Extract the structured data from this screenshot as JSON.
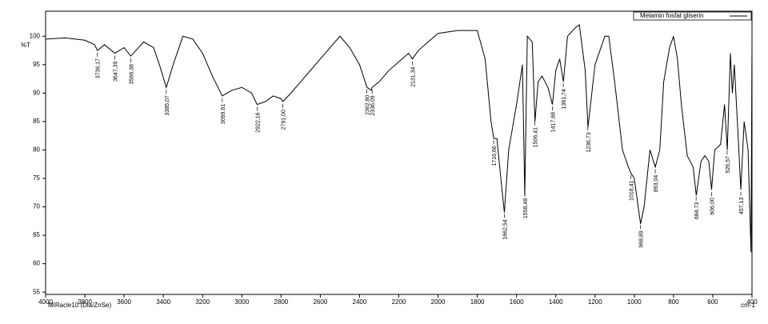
{
  "chart_data": {
    "type": "line",
    "legend_label": "Melamin fosfat gliserin",
    "ylabel": "%T",
    "xlabel": "cm-1",
    "footer": "MIRacle10 (Dia/ZnSe)",
    "xlim": [
      4000,
      400
    ],
    "ylim": [
      54.6,
      104.4
    ],
    "xticks": [
      4000,
      3800,
      3600,
      3400,
      3200,
      3000,
      2800,
      2600,
      2400,
      2200,
      2000,
      1800,
      1600,
      1400,
      1200,
      1000,
      800,
      600,
      400
    ],
    "yticks": [
      55,
      60,
      65,
      70,
      75,
      80,
      85,
      90,
      95,
      100
    ],
    "color": "#000000",
    "x": [
      4000,
      3900,
      3800,
      3750,
      3736,
      3700,
      3647,
      3600,
      3566,
      3500,
      3450,
      3420,
      3385,
      3350,
      3300,
      3250,
      3200,
      3150,
      3100,
      3050,
      3000,
      2950,
      2922,
      2880,
      2840,
      2800,
      2791,
      2750,
      2700,
      2600,
      2500,
      2450,
      2400,
      2362,
      2340,
      2336,
      2300,
      2250,
      2200,
      2150,
      2131,
      2100,
      2050,
      2000,
      1900,
      1800,
      1760,
      1730,
      1716,
      1700,
      1680,
      1662,
      1640,
      1600,
      1570,
      1558,
      1545,
      1520,
      1506,
      1490,
      1470,
      1440,
      1417,
      1400,
      1380,
      1361,
      1340,
      1300,
      1280,
      1250,
      1236,
      1200,
      1150,
      1130,
      1100,
      1060,
      1030,
      1018,
      1000,
      980,
      968,
      950,
      920,
      893,
      870,
      850,
      820,
      800,
      780,
      760,
      730,
      700,
      684,
      660,
      640,
      620,
      606,
      590,
      560,
      540,
      526,
      510,
      500,
      490,
      470,
      457,
      440,
      420,
      405,
      400
    ],
    "values": [
      99.5,
      99.7,
      99.3,
      98.5,
      97.5,
      98.5,
      97,
      98,
      96.5,
      99,
      98,
      95,
      91,
      95,
      100,
      99.5,
      97,
      93,
      89.5,
      90.5,
      91,
      90,
      88,
      88.5,
      89.5,
      89,
      88.5,
      90,
      92,
      96,
      100,
      98,
      95,
      91,
      90.5,
      91,
      92,
      94,
      95.5,
      97,
      96,
      97.5,
      99,
      100.5,
      101,
      101,
      96,
      85,
      82,
      82,
      75,
      69,
      80,
      88,
      95,
      72,
      100,
      99,
      85,
      92,
      93,
      91,
      88,
      94,
      96,
      92,
      100,
      101.5,
      102,
      94,
      84,
      95,
      100,
      100,
      92,
      80,
      77,
      76,
      75,
      70,
      67,
      70,
      80,
      77,
      80,
      92,
      98,
      100,
      96,
      88,
      79,
      77,
      72,
      78,
      79,
      78,
      73,
      80,
      81,
      88,
      80,
      97,
      90,
      95,
      82,
      73,
      85,
      80,
      62,
      99
    ],
    "annotations": [
      {
        "value": 3736.17,
        "label": "3736,17"
      },
      {
        "value": 3647.39,
        "label": "3647,39"
      },
      {
        "value": 3566.38,
        "label": "3566,38"
      },
      {
        "value": 3385.07,
        "label": "3385,07"
      },
      {
        "value": 3099.61,
        "label": "3099,61"
      },
      {
        "value": 2922.16,
        "label": "2922,16"
      },
      {
        "value": 2791.0,
        "label": "2791,00"
      },
      {
        "value": 2362.8,
        "label": "2362,80"
      },
      {
        "value": 2336.09,
        "label": "2336,09"
      },
      {
        "value": 2131.34,
        "label": "2131,34"
      },
      {
        "value": 1716.66,
        "label": "1716,66"
      },
      {
        "value": 1662.54,
        "label": "1662,54"
      },
      {
        "value": 1558.48,
        "label": "1558,48"
      },
      {
        "value": 1506.41,
        "label": "1506,41"
      },
      {
        "value": 1417.68,
        "label": "1417,68"
      },
      {
        "value": 1361.74,
        "label": "1361,74"
      },
      {
        "value": 1236.73,
        "label": "1236,73"
      },
      {
        "value": 1018.41,
        "label": "1018,41"
      },
      {
        "value": 968.89,
        "label": "968,89"
      },
      {
        "value": 893.04,
        "label": "893,04"
      },
      {
        "value": 684.73,
        "label": "684,73"
      },
      {
        "value": 606.0,
        "label": "606,00"
      },
      {
        "value": 526.57,
        "label": "526,57"
      },
      {
        "value": 457.13,
        "label": "457,13"
      }
    ]
  }
}
